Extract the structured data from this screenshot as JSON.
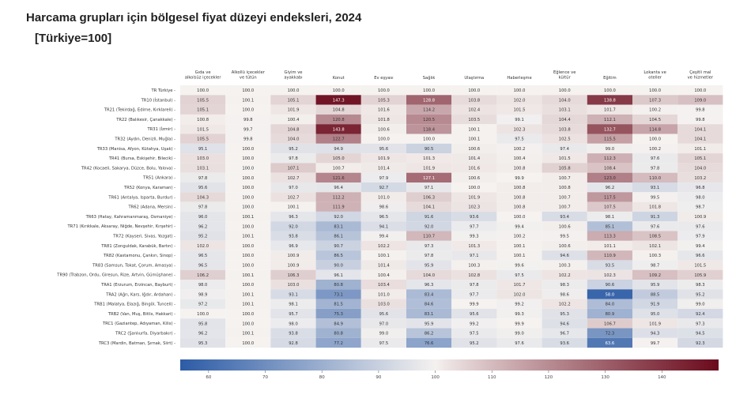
{
  "title": "Harcama grupları için bölgesel fiyat düzeyi endeksleri, 2024",
  "subtitle": "[Türkiye=100]",
  "chart_data": {
    "type": "heatmap",
    "title": "Harcama grupları için bölgesel fiyat düzeyi endeksleri, 2024",
    "subtitle": "[Türkiye=100]",
    "columns": [
      "Gıda ve alkolsüz içecekler",
      "Alkollü içecekler ve tütün",
      "Giyim ve ayakkabı",
      "Konut",
      "Ev eşyası",
      "Sağlık",
      "Ulaştırma",
      "Haberleşme",
      "Eğlence ve kültür",
      "Eğitim",
      "Lokanta ve oteller",
      "Çeşitli mal ve hizmetler"
    ],
    "rows": [
      "TR Türkiye",
      "TR10 (İstanbul)",
      "TR21 (Tekirdağ, Edirne, Kırklareli)",
      "TR22 (Balıkesir, Çanakkale)",
      "TR31 (İzmir)",
      "TR32 (Aydın, Denizli, Muğla)",
      "TR33 (Manisa, Afyon, Kütahya, Uşak)",
      "TR41 (Bursa, Eskişehir, Bilecik)",
      "TR42 (Kocaeli, Sakarya, Düzce, Bolu, Yalova)",
      "TR51 (Ankara)",
      "TR52 (Konya, Karaman)",
      "TR61 (Antalya, Isparta, Burdur)",
      "TR62 (Adana, Mersin)",
      "TR63 (Hatay, Kahramanmaraş, Osmaniye)",
      "TR71 (Kırıkkale, Aksaray, Niğde, Nevşehir, Kırşehir)",
      "TR72 (Kayseri, Sivas, Yozgat)",
      "TR81 (Zonguldak, Karabük, Bartın)",
      "TR82 (Kastamonu, Çankırı, Sinop)",
      "TR83 (Samsun, Tokat, Çorum, Amasya)",
      "TR90 (Trabzon, Ordu, Giresun, Rize, Artvin, Gümüşhane)",
      "TRA1 (Erzurum, Erzincan, Bayburt)",
      "TRA2 (Ağrı, Kars, Iğdır, Ardahan)",
      "TRB1 (Malatya, Elazığ, Bingöl, Tunceli)",
      "TRB2 (Van, Muş, Bitlis, Hakkari)",
      "TRC1 (Gaziantep, Adıyaman, Kilis)",
      "TRC2 (Şanlıurfa, Diyarbakır)",
      "TRC3 (Mardin, Batman, Şırnak, Siirt)"
    ],
    "values": [
      [
        100.0,
        100.0,
        100.0,
        100.0,
        100.0,
        100.0,
        100.0,
        100.0,
        100.0,
        100.0,
        100.0,
        100.0
      ],
      [
        105.5,
        100.1,
        105.1,
        147.3,
        105.3,
        128.8,
        103.8,
        102.0,
        104.0,
        138.8,
        107.3,
        109.0
      ],
      [
        105.1,
        100.0,
        101.9,
        104.8,
        101.6,
        114.2,
        102.4,
        101.5,
        103.1,
        101.7,
        100.2,
        99.8
      ],
      [
        100.8,
        99.8,
        100.4,
        120.8,
        101.8,
        120.5,
        103.5,
        99.1,
        104.4,
        112.1,
        104.5,
        99.8
      ],
      [
        101.5,
        99.7,
        104.8,
        143.8,
        100.6,
        118.4,
        100.1,
        102.3,
        103.8,
        132.7,
        114.8,
        104.1
      ],
      [
        105.5,
        99.8,
        104.0,
        122.7,
        100.0,
        100.0,
        100.1,
        97.5,
        102.5,
        115.5,
        100.0,
        104.1
      ],
      [
        95.1,
        100.0,
        95.2,
        94.9,
        95.6,
        90.5,
        100.6,
        100.2,
        97.4,
        99.0,
        100.2,
        101.1
      ],
      [
        103.0,
        100.0,
        97.8,
        105.0,
        101.9,
        101.3,
        101.4,
        100.4,
        101.5,
        112.3,
        97.6,
        105.1
      ],
      [
        103.1,
        100.0,
        107.1,
        100.7,
        101.4,
        101.9,
        101.6,
        100.8,
        105.8,
        108.4,
        97.8,
        104.0
      ],
      [
        97.8,
        100.0,
        102.7,
        121.6,
        97.9,
        127.1,
        100.6,
        99.9,
        100.7,
        123.0,
        110.0,
        103.2
      ],
      [
        95.6,
        100.0,
        97.0,
        96.4,
        92.7,
        97.1,
        100.0,
        100.8,
        100.8,
        96.2,
        93.1,
        96.8
      ],
      [
        104.3,
        100.0,
        102.7,
        112.2,
        101.0,
        106.3,
        101.9,
        100.8,
        100.7,
        117.5,
        99.5,
        98.0
      ],
      [
        97.8,
        100.0,
        100.1,
        111.9,
        98.6,
        104.1,
        102.3,
        100.8,
        100.7,
        107.5,
        101.8,
        98.7
      ],
      [
        96.0,
        100.1,
        96.3,
        92.0,
        96.5,
        91.6,
        93.6,
        100.0,
        93.4,
        98.1,
        91.3,
        100.9
      ],
      [
        96.2,
        100.0,
        92.0,
        83.1,
        94.1,
        92.0,
        97.7,
        99.4,
        100.6,
        85.1,
        97.6,
        97.6
      ],
      [
        95.2,
        100.1,
        93.8,
        86.1,
        99.4,
        110.7,
        99.3,
        100.2,
        99.5,
        113.3,
        108.5,
        97.9
      ],
      [
        102.0,
        100.0,
        96.9,
        90.7,
        102.2,
        97.3,
        101.3,
        100.1,
        100.6,
        101.1,
        102.1,
        99.4
      ],
      [
        96.5,
        100.0,
        100.9,
        86.5,
        100.1,
        97.8,
        97.1,
        100.1,
        94.6,
        110.9,
        100.3,
        96.6
      ],
      [
        96.5,
        100.0,
        100.9,
        90.0,
        101.4,
        95.9,
        100.3,
        99.6,
        100.3,
        93.5,
        98.7,
        101.5
      ],
      [
        106.2,
        100.1,
        106.3,
        96.1,
        100.4,
        104.0,
        102.8,
        97.5,
        102.2,
        102.3,
        109.2,
        105.9
      ],
      [
        98.0,
        100.0,
        103.0,
        80.8,
        103.4,
        96.3,
        97.8,
        101.7,
        98.3,
        90.6,
        95.9,
        98.3
      ],
      [
        98.9,
        100.1,
        93.1,
        73.1,
        101.0,
        83.4,
        97.7,
        102.0,
        98.6,
        58.0,
        88.5,
        95.2
      ],
      [
        97.2,
        100.1,
        98.1,
        81.5,
        103.0,
        84.6,
        99.9,
        99.2,
        102.2,
        84.0,
        91.9,
        99.0
      ],
      [
        100.0,
        100.0,
        95.7,
        75.3,
        95.6,
        83.1,
        95.6,
        99.3,
        95.3,
        80.9,
        95.0,
        92.4
      ],
      [
        95.8,
        100.0,
        98.0,
        84.9,
        97.0,
        95.9,
        99.2,
        99.9,
        94.6,
        106.7,
        101.9,
        97.3
      ],
      [
        96.2,
        100.1,
        93.8,
        80.8,
        99.0,
        86.2,
        97.5,
        99.0,
        96.7,
        72.3,
        94.3,
        94.5
      ],
      [
        95.3,
        100.0,
        92.8,
        77.2,
        97.5,
        76.6,
        95.2,
        97.6,
        93.6,
        63.6,
        99.7,
        92.3
      ]
    ],
    "colorbar": {
      "ticks": [
        60,
        70,
        80,
        90,
        100,
        110,
        120,
        130,
        140
      ],
      "range": [
        55,
        150
      ],
      "low_color": "#2c5ba6",
      "mid_color": "#f5f2f0",
      "high_color": "#6a0a1c"
    }
  }
}
